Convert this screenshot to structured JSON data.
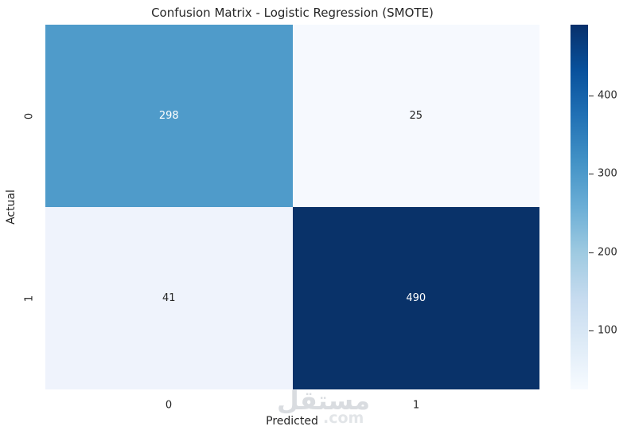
{
  "figure": {
    "background": "#ffffff",
    "text_color": "#262626"
  },
  "chart_data": {
    "type": "heatmap",
    "title": "Confusion Matrix - Logistic Regression (SMOTE)",
    "xlabel": "Predicted",
    "ylabel": "Actual",
    "x_tick_labels": [
      "0",
      "1"
    ],
    "y_tick_labels": [
      "0",
      "1"
    ],
    "values": [
      [
        298,
        25
      ],
      [
        41,
        490
      ]
    ],
    "cells": [
      [
        {
          "value": "298",
          "bg": "#4f9bca",
          "fg": "#ffffff"
        },
        {
          "value": "25",
          "bg": "#f6f9fe",
          "fg": "#262626"
        }
      ],
      [
        {
          "value": "41",
          "bg": "#eff3fc",
          "fg": "#262626"
        },
        {
          "value": "490",
          "bg": "#093269",
          "fg": "#ffffff"
        }
      ]
    ],
    "vmin": 25,
    "vmax": 490,
    "colormap": "Blues",
    "colormap_stops": [
      "#f7fbff",
      "#deebf7",
      "#c6dbef",
      "#9ecae1",
      "#6baed6",
      "#4292c6",
      "#2171b5",
      "#08519c",
      "#08306b"
    ],
    "colorbar_ticks": [
      "100",
      "200",
      "300",
      "400"
    ],
    "legend_position": "right-colorbar",
    "grid": false
  },
  "watermark": {
    "arabic": "مستقل",
    "latin": ".com",
    "arabic_color": "#d9dce0",
    "latin_color": "#e2e5e8"
  }
}
